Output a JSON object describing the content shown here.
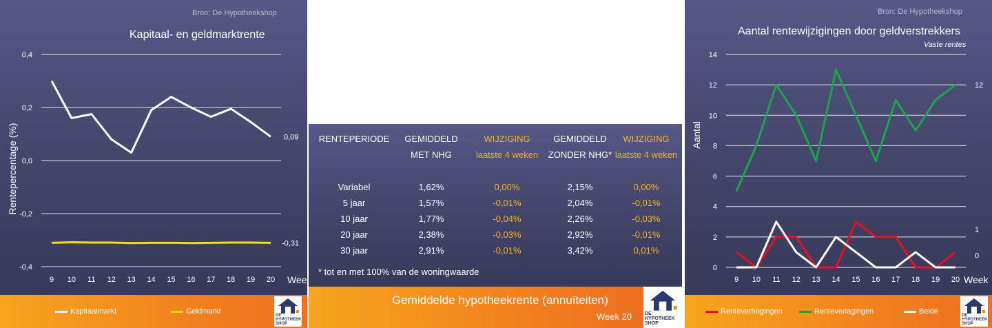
{
  "left_panel": {
    "source": "Bron: De Hypotheekshop",
    "title": "Kapitaal- en geldmarktrente",
    "legend": [
      "Kapitaalmarkt",
      "Geldmarkt"
    ],
    "logo_text": [
      "DE",
      "HYPOTHEEK",
      "SHOP"
    ]
  },
  "middle_panel": {
    "headers": [
      [
        "RENTEPERIODE",
        ""
      ],
      [
        "GEMIDDELD",
        "MET NHG"
      ],
      [
        "WIJZIGING",
        "laatste 4 weken"
      ],
      [
        "GEMIDDELD",
        "ZONDER NHG*"
      ],
      [
        "WIJZIGING",
        "laatste 4 weken"
      ]
    ],
    "rows": [
      [
        "Variabel",
        "1,62%",
        "0,00%",
        "2,15%",
        "0,00%"
      ],
      [
        "5 jaar",
        "1,57%",
        "-0,01%",
        "2,04%",
        "-0,01%"
      ],
      [
        "10 jaar",
        "1,77%",
        "-0,04%",
        "2,26%",
        "-0,03%"
      ],
      [
        "20 jaar",
        "2,38%",
        "-0,03%",
        "2,92%",
        "-0,01%"
      ],
      [
        "30 jaar",
        "2,91%",
        "-0,01%",
        "3,42%",
        "0,01%"
      ]
    ],
    "footnote": "* tot en met 100% van de woningwaarde",
    "footer_title": "Gemiddelde hypotheekrente (annuïteiten)",
    "footer_week": "Week 20",
    "logo_text": [
      "DE",
      "HYPOTHEEK",
      "SHOP"
    ]
  },
  "right_panel": {
    "source": "Bron: De Hypotheekshop",
    "title": "Aantal rentewijzigingen door geldverstrekkers",
    "subtitle": "Vaste rentes",
    "legend": [
      "Renteverhogingen",
      "Renteverlagingen",
      "Beide"
    ],
    "logo_text": [
      "DE",
      "HYPOTHEEK",
      "SHOP"
    ]
  },
  "colors": {
    "kapitaalmarkt": "#ffffff",
    "geldmarkt": "#f2e20c",
    "renteverhogingen": "#e8101d",
    "renteverlagingen": "#19a64a",
    "beide": "#ffffff",
    "accent_orange": "#f08a1e",
    "highlight_yellow": "#f4b21d"
  },
  "chart_data": [
    {
      "type": "line",
      "title": "Kapitaal- en geldmarktrente",
      "xlabel": "Week",
      "ylabel": "Rentepercentage (%)",
      "x": [
        9,
        10,
        11,
        12,
        13,
        14,
        15,
        16,
        17,
        18,
        19,
        20
      ],
      "ylim": [
        -0.4,
        0.4
      ],
      "yticks": [
        "0,4",
        "0,2",
        "0,0",
        "-0,2",
        "-0,4"
      ],
      "grid": true,
      "legend_position": "bottom",
      "series": [
        {
          "name": "Kapitaalmarkt",
          "values": [
            0.3,
            0.16,
            0.175,
            0.08,
            0.03,
            0.19,
            0.24,
            0.2,
            0.165,
            0.195,
            0.145,
            0.09
          ],
          "end_label": "0,09"
        },
        {
          "name": "Geldmarkt",
          "values": [
            -0.31,
            -0.308,
            -0.309,
            -0.309,
            -0.311,
            -0.31,
            -0.31,
            -0.311,
            -0.31,
            -0.309,
            -0.309,
            -0.31
          ],
          "end_label": "-0,31"
        }
      ]
    },
    {
      "type": "line",
      "title": "Aantal rentewijzigingen door geldverstrekkers",
      "subtitle": "Vaste rentes",
      "xlabel": "Week",
      "ylabel": "Aantal",
      "x": [
        9,
        10,
        11,
        12,
        13,
        14,
        15,
        16,
        17,
        18,
        19,
        20
      ],
      "ylim": [
        0,
        14
      ],
      "yticks": [
        "14",
        "12",
        "10",
        "8",
        "6",
        "4",
        "2",
        "0"
      ],
      "grid": true,
      "legend_position": "bottom",
      "series": [
        {
          "name": "Renteverhogingen",
          "values": [
            1,
            0,
            2,
            2,
            0,
            0,
            3,
            2,
            2,
            0,
            0,
            1
          ],
          "end_label": "1"
        },
        {
          "name": "Renteverlagingen",
          "values": [
            5,
            8,
            12,
            10,
            7,
            13,
            10,
            7,
            11,
            9,
            11,
            12
          ],
          "end_label": "12"
        },
        {
          "name": "Beide",
          "values": [
            0,
            0,
            3,
            1,
            0,
            2,
            1,
            0,
            0,
            1,
            0,
            0
          ],
          "end_label": "0"
        }
      ]
    }
  ]
}
